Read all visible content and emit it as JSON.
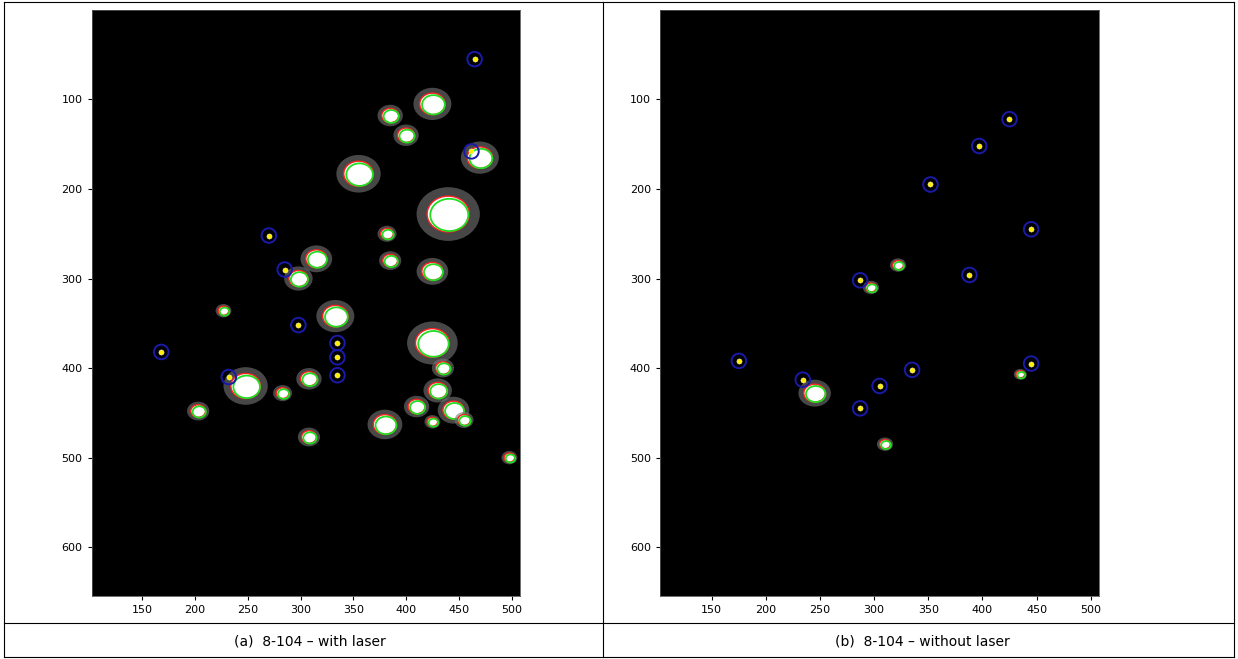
{
  "chart_data": [
    {
      "type": "image",
      "caption": "(a)  8-104 – with laser",
      "xlim": [
        102,
        508
      ],
      "ylim": [
        655,
        0
      ],
      "xticks": [
        150,
        200,
        250,
        300,
        350,
        400,
        450,
        500
      ],
      "yticks": [
        100,
        200,
        300,
        400,
        500,
        600
      ],
      "detected_points": [
        [
          465,
          55
        ],
        [
          270,
          252
        ],
        [
          285,
          290
        ],
        [
          298,
          352
        ],
        [
          335,
          372
        ],
        [
          335,
          388
        ],
        [
          335,
          408
        ],
        [
          168,
          382
        ],
        [
          232,
          410
        ],
        [
          462,
          158
        ]
      ],
      "blobs": [
        [
          425,
          105,
          12
        ],
        [
          385,
          118,
          8
        ],
        [
          400,
          140,
          8
        ],
        [
          355,
          183,
          14
        ],
        [
          470,
          165,
          12
        ],
        [
          440,
          228,
          20
        ],
        [
          382,
          250,
          6
        ],
        [
          385,
          280,
          7
        ],
        [
          315,
          278,
          10
        ],
        [
          298,
          300,
          9
        ],
        [
          425,
          292,
          10
        ],
        [
          333,
          342,
          12
        ],
        [
          425,
          372,
          16
        ],
        [
          435,
          400,
          7
        ],
        [
          227,
          336,
          5
        ],
        [
          248,
          420,
          14
        ],
        [
          308,
          412,
          8
        ],
        [
          430,
          425,
          9
        ],
        [
          283,
          428,
          6
        ],
        [
          445,
          447,
          10
        ],
        [
          410,
          443,
          8
        ],
        [
          203,
          448,
          7
        ],
        [
          425,
          460,
          5
        ],
        [
          455,
          458,
          6
        ],
        [
          380,
          463,
          11
        ],
        [
          308,
          477,
          7
        ],
        [
          498,
          500,
          5
        ]
      ]
    },
    {
      "type": "image",
      "caption": "(b)  8-104 – without laser",
      "xlim": [
        102,
        508
      ],
      "ylim": [
        655,
        0
      ],
      "xticks": [
        150,
        200,
        250,
        300,
        350,
        400,
        450,
        500
      ],
      "yticks": [
        100,
        200,
        300,
        400,
        500,
        600
      ],
      "detected_points": [
        [
          425,
          122
        ],
        [
          397,
          152
        ],
        [
          352,
          195
        ],
        [
          445,
          245
        ],
        [
          388,
          296
        ],
        [
          287,
          302
        ],
        [
          175,
          392
        ],
        [
          445,
          395
        ],
        [
          305,
          420
        ],
        [
          335,
          402
        ],
        [
          287,
          445
        ],
        [
          234,
          413
        ]
      ],
      "blobs": [
        [
          297,
          310,
          5
        ],
        [
          322,
          285,
          5
        ],
        [
          245,
          428,
          10
        ],
        [
          435,
          407,
          4
        ],
        [
          310,
          485,
          5
        ]
      ]
    }
  ]
}
